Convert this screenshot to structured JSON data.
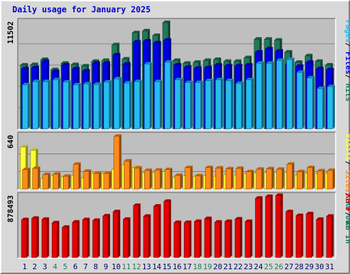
{
  "title": "Daily usage for January 2025",
  "colors": {
    "hits": "#1f7a5a",
    "files": "#0000e6",
    "pages": "#24bdf2",
    "visits": "#ffff33",
    "sites": "#ff8a1a",
    "kbf": "#e60000",
    "panel_bg": "#bfbfbf",
    "frame_bg": "#d8d8d8",
    "weekend_label": "#1f7a5a",
    "weekday_label": "#000066"
  },
  "chart_data": [
    {
      "type": "bar",
      "name": "top-panel",
      "ymax_label": "11502",
      "ylim": [
        0,
        11502
      ],
      "legend": [
        {
          "text": "Pages",
          "color": "#24bdf2"
        },
        {
          "text": "/",
          "color": "#000000"
        },
        {
          "text": "Files",
          "color": "#0000e6"
        },
        {
          "text": "/",
          "color": "#000000"
        },
        {
          "text": "Hits",
          "color": "#1f7a5a"
        }
      ],
      "categories": [
        "1",
        "2",
        "3",
        "4",
        "5",
        "6",
        "7",
        "8",
        "9",
        "10",
        "11",
        "12",
        "13",
        "14",
        "15",
        "16",
        "17",
        "18",
        "19",
        "20",
        "21",
        "22",
        "23",
        "24",
        "25",
        "26",
        "27",
        "28",
        "29",
        "30",
        "31"
      ],
      "series": [
        {
          "key": "hits",
          "values": [
            6900,
            6950,
            7500,
            6400,
            7100,
            6950,
            6800,
            7300,
            7400,
            9100,
            7550,
            10400,
            10600,
            10100,
            11500,
            7400,
            7100,
            7200,
            7400,
            7500,
            7300,
            7300,
            7700,
            9700,
            9700,
            9600,
            8300,
            7200,
            7900,
            7300,
            6900
          ]
        },
        {
          "key": "files",
          "values": [
            6500,
            6600,
            7300,
            6200,
            6900,
            6500,
            6250,
            7100,
            7100,
            8000,
            7000,
            9400,
            9500,
            9300,
            9600,
            6900,
            6650,
            6550,
            6600,
            6900,
            6800,
            6800,
            6900,
            8300,
            8650,
            8400,
            7000,
            6750,
            7200,
            6500,
            6400
          ]
        },
        {
          "key": "pages",
          "values": [
            4750,
            5100,
            5100,
            5300,
            5050,
            4750,
            4850,
            4800,
            5050,
            5400,
            4950,
            5100,
            7000,
            5100,
            7200,
            5300,
            5000,
            5000,
            5200,
            5300,
            5200,
            4900,
            5300,
            7100,
            7100,
            7400,
            7500,
            6100,
            5500,
            4350,
            4550
          ]
        }
      ]
    },
    {
      "type": "bar",
      "name": "middle-panel",
      "ymax_label": "640",
      "ylim": [
        0,
        640
      ],
      "legend": [
        {
          "text": "Visits",
          "color": "#ffff33"
        },
        {
          "text": "/",
          "color": "#000000"
        },
        {
          "text": "Sites",
          "color": "#ff8a1a"
        },
        {
          "text": "/",
          "color": "#000000"
        },
        {
          "text": "KB Out",
          "color": "#1f7a5a"
        }
      ],
      "categories": [
        "1",
        "2",
        "3",
        "4",
        "5",
        "6",
        "7",
        "8",
        "9",
        "10",
        "11",
        "12",
        "13",
        "14",
        "15",
        "16",
        "17",
        "18",
        "19",
        "20",
        "21",
        "22",
        "23",
        "24",
        "25",
        "26",
        "27",
        "28",
        "29",
        "30",
        "31"
      ],
      "series": [
        {
          "key": "visits",
          "values": [
            510,
            470,
            130,
            165,
            150,
            165,
            135,
            190,
            185,
            240,
            295,
            260,
            195,
            200,
            210,
            145,
            160,
            155,
            160,
            155,
            175,
            170,
            185,
            195,
            200,
            200,
            205,
            170,
            195,
            185,
            190
          ]
        },
        {
          "key": "sites",
          "values": [
            235,
            250,
            175,
            180,
            155,
            300,
            215,
            190,
            190,
            640,
            340,
            255,
            225,
            230,
            235,
            165,
            260,
            160,
            260,
            255,
            245,
            250,
            210,
            240,
            245,
            240,
            300,
            210,
            260,
            220,
            225
          ]
        }
      ]
    },
    {
      "type": "bar",
      "name": "bottom-panel",
      "ymax_label": "878493",
      "ylim": [
        0,
        878493
      ],
      "legend": [
        {
          "text": "KB F",
          "color": "#e60000"
        },
        {
          "text": "/",
          "color": "#000000"
        },
        {
          "text": "KB In",
          "color": "#1f7a5a"
        }
      ],
      "categories": [
        "1",
        "2",
        "3",
        "4",
        "5",
        "6",
        "7",
        "8",
        "9",
        "10",
        "11",
        "12",
        "13",
        "14",
        "15",
        "16",
        "17",
        "18",
        "19",
        "20",
        "21",
        "22",
        "23",
        "24",
        "25",
        "26",
        "27",
        "28",
        "29",
        "30",
        "31"
      ],
      "series": [
        {
          "key": "kbf",
          "values": [
            545000,
            565000,
            550000,
            500000,
            435000,
            510000,
            545000,
            535000,
            600000,
            660000,
            550000,
            750000,
            595000,
            740000,
            810000,
            505000,
            505000,
            520000,
            560000,
            510000,
            520000,
            555000,
            520000,
            855000,
            880000,
            895000,
            660000,
            605000,
            630000,
            550000,
            595000
          ]
        }
      ]
    }
  ],
  "weekend_days": [
    "4",
    "5",
    "11",
    "12",
    "18",
    "19",
    "25",
    "26"
  ]
}
